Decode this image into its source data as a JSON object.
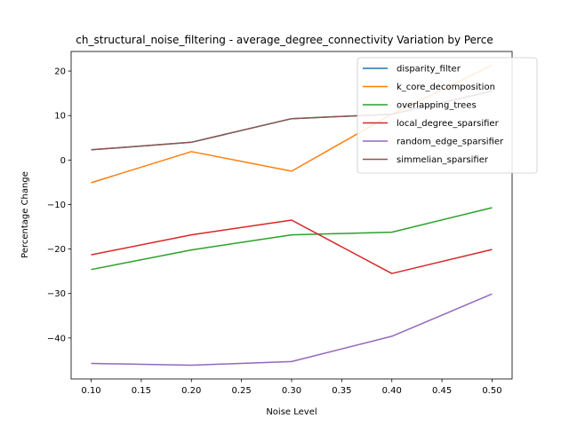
{
  "chart_data": {
    "type": "line",
    "title": "ch_structural_noise_filtering - average_degree_connectivity Variation by Perce",
    "xlabel": "Noise Level",
    "ylabel": "Percentage Change",
    "x": [
      0.1,
      0.2,
      0.3,
      0.4,
      0.5
    ],
    "xlim": [
      0.08,
      0.52
    ],
    "ylim": [
      -49.2,
      24.4
    ],
    "xticks": [
      "0.10",
      "0.15",
      "0.20",
      "0.25",
      "0.30",
      "0.35",
      "0.40",
      "0.45",
      "0.50"
    ],
    "yticks": [
      "−40",
      "−30",
      "−20",
      "−10",
      "0",
      "10",
      "20"
    ],
    "grid": false,
    "legend_position": "top-right",
    "series": [
      {
        "name": "disparity_filter",
        "color": "#1f77b4",
        "values": [
          2.3,
          4.0,
          9.3,
          10.3,
          15.5
        ]
      },
      {
        "name": "k_core_decomposition",
        "color": "#ff7f0e",
        "values": [
          -5.1,
          1.9,
          -2.5,
          10.3,
          21.3
        ]
      },
      {
        "name": "overlapping_trees",
        "color": "#2ca02c",
        "values": [
          -24.6,
          -20.2,
          -16.8,
          -16.2,
          -10.7
        ]
      },
      {
        "name": "local_degree_sparsifier",
        "color": "#d62728",
        "values": [
          -21.3,
          -16.8,
          -13.5,
          -25.5,
          -20.1
        ]
      },
      {
        "name": "random_edge_sparsifier",
        "color": "#9467bd",
        "values": [
          -45.7,
          -46.1,
          -45.3,
          -39.6,
          -30.1
        ]
      },
      {
        "name": "simmelian_sparsifier",
        "color": "#8c564b",
        "values": [
          2.3,
          4.0,
          9.3,
          10.3,
          15.5
        ]
      }
    ]
  }
}
